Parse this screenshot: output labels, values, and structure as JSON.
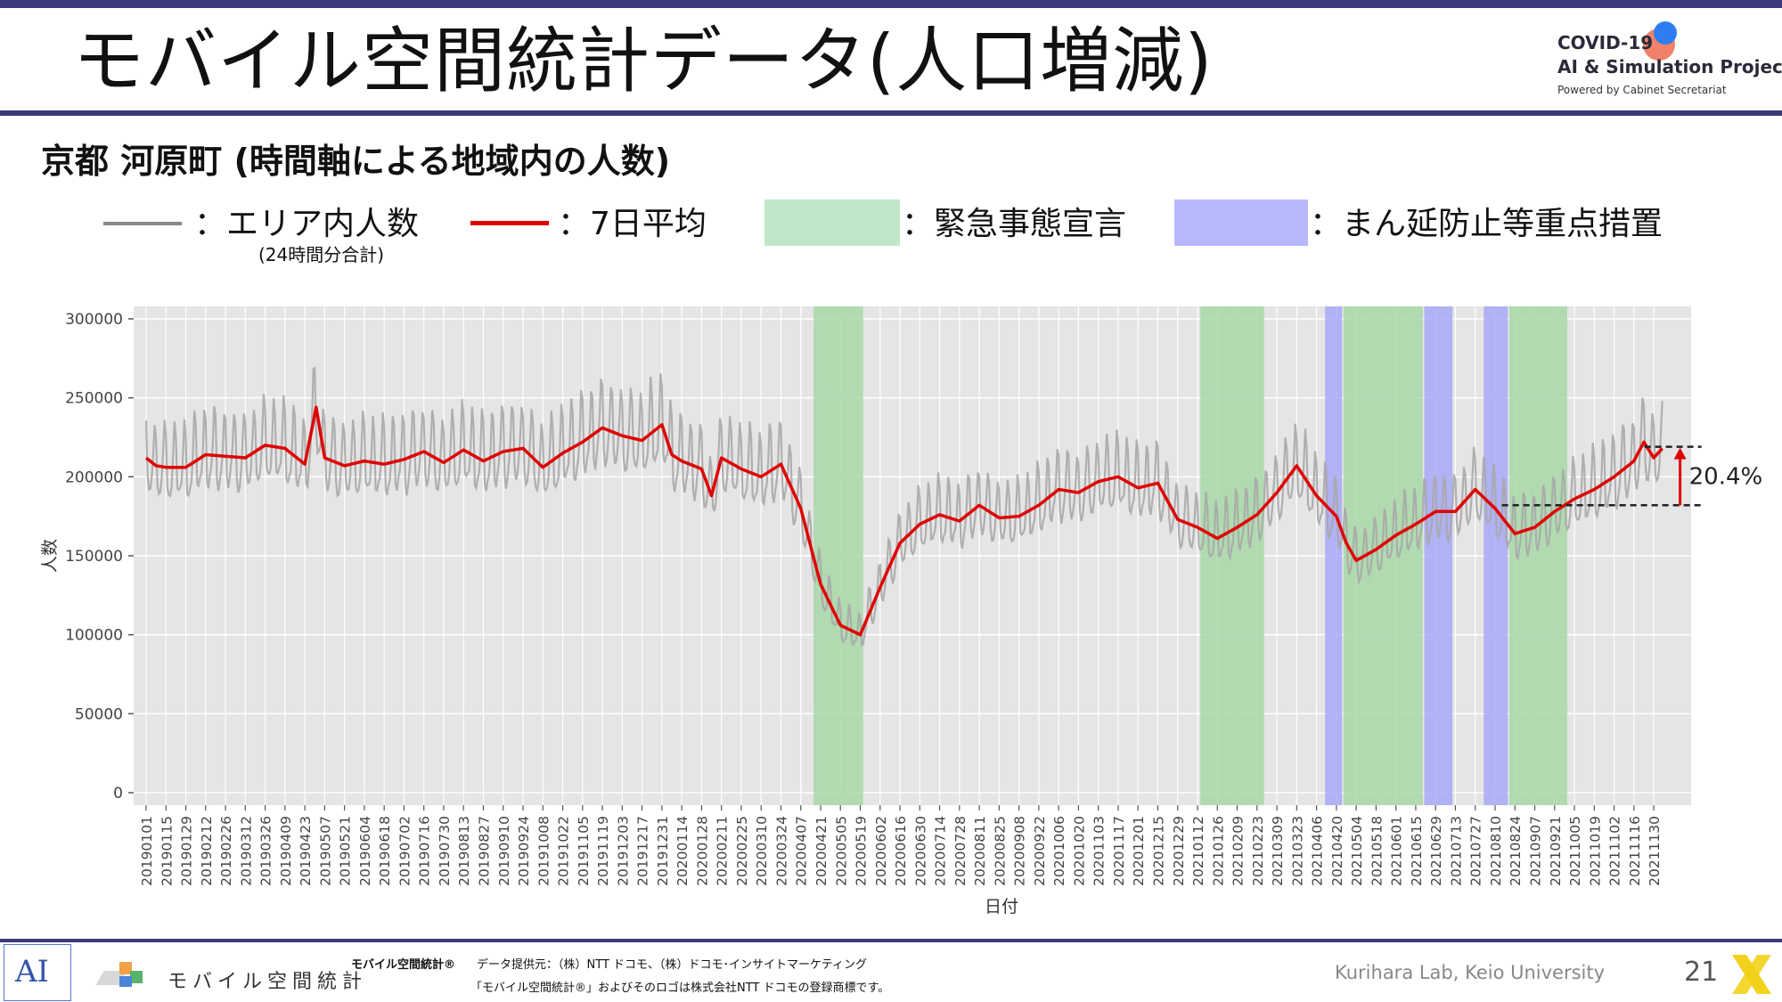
{
  "header": {
    "title": "モバイル空間統計データ(人口増減)",
    "logo_line1": "COVID-19",
    "logo_line2": "AI & Simulation Project",
    "logo_line3": "Powered by Cabinet Secretariat"
  },
  "subtitle": "京都 河原町 (時間軸による地域内の人数)",
  "legend": {
    "gray_label": "：エリア内人数",
    "gray_sublabel": "(24時間分合計)",
    "red_label": "：7日平均",
    "green_label": "：緊急事態宣言",
    "blue_label": "：まん延防止等重点措置"
  },
  "colors": {
    "gray_series": "#a8a8a8",
    "red_series": "#e00000",
    "emergency": "#a8d8a8",
    "priority": "#a8a8f8",
    "panel": "#e5e5e5",
    "accent": "#3b3a7a"
  },
  "chart_data": {
    "type": "line",
    "title": "",
    "xlabel": "日付",
    "ylabel": "人数",
    "ylim": [
      0,
      300000
    ],
    "yticks": [
      0,
      50000,
      100000,
      150000,
      200000,
      250000,
      300000
    ],
    "ytick_labels": [
      "0",
      "50000",
      "100000",
      "150000",
      "200000",
      "250000",
      "300000"
    ],
    "x_start": "2019-01-01",
    "x_end": "2021-12-10",
    "grid": true,
    "xtick_labels": [
      "20190101",
      "20190115",
      "20190129",
      "20190212",
      "20190226",
      "20190312",
      "20190326",
      "20190409",
      "20190423",
      "20190507",
      "20190521",
      "20190604",
      "20190618",
      "20190702",
      "20190716",
      "20190730",
      "20190813",
      "20190827",
      "20190910",
      "20190924",
      "20191008",
      "20191022",
      "20191105",
      "20191119",
      "20191203",
      "20191217",
      "20191231",
      "20200114",
      "20200128",
      "20200211",
      "20200225",
      "20200310",
      "20200324",
      "20200407",
      "20200421",
      "20200505",
      "20200519",
      "20200602",
      "20200616",
      "20200630",
      "20200714",
      "20200728",
      "20200811",
      "20200825",
      "20200908",
      "20200922",
      "20201006",
      "20201020",
      "20201103",
      "20201117",
      "20201201",
      "20201215",
      "20201229",
      "20210112",
      "20210126",
      "20210209",
      "20210223",
      "20210309",
      "20210323",
      "20210406",
      "20210420",
      "20210504",
      "20210518",
      "20210601",
      "20210615",
      "20210629",
      "20210713",
      "20210727",
      "20210810",
      "20210824",
      "20210907",
      "20210921",
      "20211005",
      "20211019",
      "20211102",
      "20211116",
      "20211130"
    ],
    "shaded_periods": [
      {
        "kind": "emergency",
        "start": "2020-04-16",
        "end": "2020-05-21"
      },
      {
        "kind": "emergency",
        "start": "2021-01-14",
        "end": "2021-02-28"
      },
      {
        "kind": "priority",
        "start": "2021-04-12",
        "end": "2021-04-24"
      },
      {
        "kind": "emergency",
        "start": "2021-04-25",
        "end": "2021-06-20"
      },
      {
        "kind": "priority",
        "start": "2021-06-21",
        "end": "2021-07-11"
      },
      {
        "kind": "priority",
        "start": "2021-08-02",
        "end": "2021-08-19"
      },
      {
        "kind": "emergency",
        "start": "2021-08-20",
        "end": "2021-09-30"
      }
    ],
    "series": [
      {
        "name": "7日平均",
        "color": "#e00000",
        "points": [
          [
            "2019-01-01",
            212000
          ],
          [
            "2019-01-08",
            207000
          ],
          [
            "2019-01-15",
            206000
          ],
          [
            "2019-01-29",
            206000
          ],
          [
            "2019-02-12",
            214000
          ],
          [
            "2019-02-26",
            213000
          ],
          [
            "2019-03-12",
            212000
          ],
          [
            "2019-03-26",
            220000
          ],
          [
            "2019-04-09",
            218000
          ],
          [
            "2019-04-23",
            208000
          ],
          [
            "2019-05-01",
            244000
          ],
          [
            "2019-05-07",
            212000
          ],
          [
            "2019-05-21",
            207000
          ],
          [
            "2019-06-04",
            210000
          ],
          [
            "2019-06-18",
            208000
          ],
          [
            "2019-07-02",
            211000
          ],
          [
            "2019-07-16",
            216000
          ],
          [
            "2019-07-30",
            209000
          ],
          [
            "2019-08-13",
            217000
          ],
          [
            "2019-08-27",
            210000
          ],
          [
            "2019-09-10",
            216000
          ],
          [
            "2019-09-24",
            218000
          ],
          [
            "2019-10-08",
            206000
          ],
          [
            "2019-10-22",
            215000
          ],
          [
            "2019-11-05",
            222000
          ],
          [
            "2019-11-19",
            231000
          ],
          [
            "2019-12-03",
            226000
          ],
          [
            "2019-12-17",
            223000
          ],
          [
            "2019-12-31",
            233000
          ],
          [
            "2020-01-07",
            214000
          ],
          [
            "2020-01-14",
            210000
          ],
          [
            "2020-01-28",
            205000
          ],
          [
            "2020-02-04",
            188000
          ],
          [
            "2020-02-11",
            212000
          ],
          [
            "2020-02-25",
            205000
          ],
          [
            "2020-03-10",
            200000
          ],
          [
            "2020-03-24",
            208000
          ],
          [
            "2020-04-07",
            180000
          ],
          [
            "2020-04-21",
            132000
          ],
          [
            "2020-05-05",
            106000
          ],
          [
            "2020-05-19",
            100000
          ],
          [
            "2020-06-02",
            130000
          ],
          [
            "2020-06-16",
            158000
          ],
          [
            "2020-06-30",
            170000
          ],
          [
            "2020-07-14",
            176000
          ],
          [
            "2020-07-28",
            172000
          ],
          [
            "2020-08-11",
            182000
          ],
          [
            "2020-08-25",
            174000
          ],
          [
            "2020-09-08",
            175000
          ],
          [
            "2020-09-22",
            182000
          ],
          [
            "2020-10-06",
            192000
          ],
          [
            "2020-10-20",
            190000
          ],
          [
            "2020-11-03",
            197000
          ],
          [
            "2020-11-17",
            200000
          ],
          [
            "2020-12-01",
            193000
          ],
          [
            "2020-12-15",
            196000
          ],
          [
            "2020-12-29",
            173000
          ],
          [
            "2021-01-12",
            168000
          ],
          [
            "2021-01-26",
            161000
          ],
          [
            "2021-02-09",
            168000
          ],
          [
            "2021-02-23",
            176000
          ],
          [
            "2021-03-09",
            190000
          ],
          [
            "2021-03-23",
            207000
          ],
          [
            "2021-04-06",
            188000
          ],
          [
            "2021-04-20",
            175000
          ],
          [
            "2021-04-27",
            158000
          ],
          [
            "2021-05-04",
            147000
          ],
          [
            "2021-05-18",
            154000
          ],
          [
            "2021-06-01",
            163000
          ],
          [
            "2021-06-15",
            170000
          ],
          [
            "2021-06-29",
            178000
          ],
          [
            "2021-07-13",
            178000
          ],
          [
            "2021-07-27",
            192000
          ],
          [
            "2021-08-10",
            180000
          ],
          [
            "2021-08-24",
            164000
          ],
          [
            "2021-09-07",
            168000
          ],
          [
            "2021-09-21",
            178000
          ],
          [
            "2021-10-05",
            186000
          ],
          [
            "2021-10-19",
            192000
          ],
          [
            "2021-11-02",
            200000
          ],
          [
            "2021-11-16",
            210000
          ],
          [
            "2021-11-23",
            222000
          ],
          [
            "2021-11-30",
            212000
          ],
          [
            "2021-12-06",
            218000
          ]
        ]
      },
      {
        "name": "エリア内人数",
        "color": "#a8a8a8",
        "generated_from": "7日平均",
        "weekly_amplitude": 0.12
      }
    ],
    "annotations": [
      {
        "text": "20.4%",
        "from_value": 182000,
        "to_value": 219000,
        "date": "2021-12-06"
      }
    ]
  },
  "footer": {
    "ai_mark": "AI",
    "mobile_logo_text": "モバイル空間統計",
    "source_brand": "モバイル空間統計®",
    "source_text": "データ提供元：（株）NTT ドコモ、（株）ドコモ･インサイトマーケティング",
    "trademark_text": "「モバイル空間統計®」およびそのロゴは株式会社NTT ドコモの登録商標です。",
    "lab": "Kurihara Lab, Keio University",
    "page_number": "21"
  }
}
